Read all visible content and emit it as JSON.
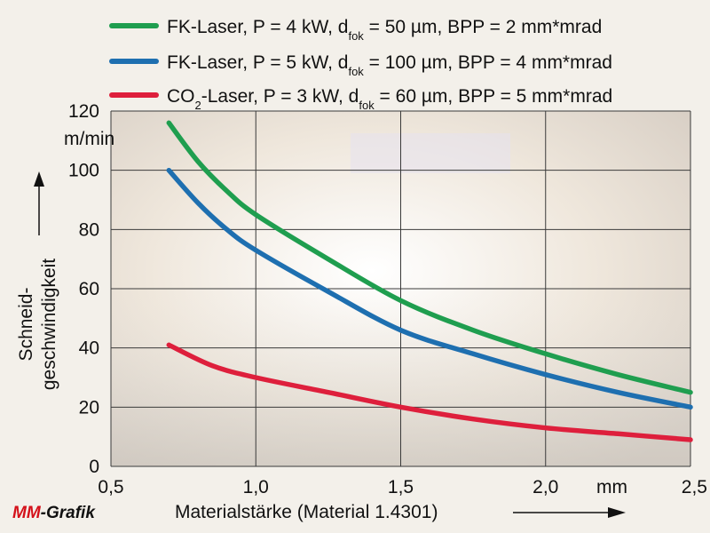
{
  "chart_data": {
    "type": "line",
    "xlabel": "Materialstärke (Material 1.4301)",
    "x_unit": "mm",
    "ylabel_lines": [
      "Schneid-",
      "geschwindigkeit"
    ],
    "y_unit": "m/min",
    "xlim": [
      0.5,
      2.5
    ],
    "ylim": [
      0,
      120
    ],
    "x_ticks": [
      "0,5",
      "1,0",
      "1,5",
      "2,0",
      "2,5"
    ],
    "x_tick_values": [
      0.5,
      1.0,
      1.5,
      2.0,
      2.5
    ],
    "y_ticks": [
      "0",
      "20",
      "40",
      "60",
      "80",
      "100",
      "120"
    ],
    "y_tick_values": [
      0,
      20,
      40,
      60,
      80,
      100,
      120
    ],
    "grid": true,
    "legend_position": "top",
    "series": [
      {
        "legend": {
          "pre": "FK-Laser, P = 4 kW, d",
          "sub": "fok",
          "post": " = 50 µm, BPP = 2 mm*mrad"
        },
        "color": "#1f9e4f",
        "points": [
          [
            0.7,
            116
          ],
          [
            0.8,
            103
          ],
          [
            0.9,
            93
          ],
          [
            1.0,
            85
          ],
          [
            1.25,
            70
          ],
          [
            1.5,
            56
          ],
          [
            1.75,
            46
          ],
          [
            2.0,
            38
          ],
          [
            2.25,
            31
          ],
          [
            2.5,
            25
          ]
        ]
      },
      {
        "legend": {
          "pre": "FK-Laser, P = 5 kW, d",
          "sub": "fok",
          "post": " = 100 µm, BPP = 4 mm*mrad"
        },
        "color": "#1e6fb0",
        "points": [
          [
            0.7,
            100
          ],
          [
            0.8,
            89
          ],
          [
            0.9,
            80
          ],
          [
            1.0,
            73
          ],
          [
            1.25,
            59
          ],
          [
            1.5,
            46
          ],
          [
            1.75,
            38
          ],
          [
            2.0,
            31
          ],
          [
            2.25,
            25
          ],
          [
            2.5,
            20
          ]
        ]
      },
      {
        "legend": {
          "pre": "CO",
          "sub": "2",
          "post": "-Laser, P = 3 kW, d",
          "sub2": "fok",
          "post2": " = 60 µm, BPP = 5 mm*mrad"
        },
        "color": "#de1f3c",
        "points": [
          [
            0.7,
            41
          ],
          [
            0.85,
            34
          ],
          [
            1.0,
            30
          ],
          [
            1.25,
            25
          ],
          [
            1.5,
            20
          ],
          [
            1.75,
            16
          ],
          [
            2.0,
            13
          ],
          [
            2.25,
            11
          ],
          [
            2.5,
            9
          ]
        ]
      }
    ]
  },
  "logo": {
    "mm": "MM",
    "rest": "-Grafik"
  },
  "colors": {
    "grid": "#3a3a3a",
    "plot_bg": "#f7f4ef",
    "logo_red": "#d4111a"
  }
}
